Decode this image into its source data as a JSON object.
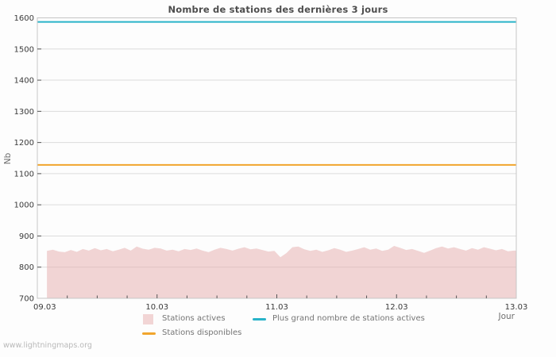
{
  "page": {
    "footer": "www.lightningmaps.org"
  },
  "chart_data": {
    "type": "area",
    "title": "Nombre de stations des dernières 3 jours",
    "xlabel": "Jour",
    "ylabel": "Nb",
    "x_domain": [
      9,
      13
    ],
    "x_major_ticks": [
      9,
      10,
      11,
      12,
      13
    ],
    "x_tick_labels": [
      "09.03",
      "10.03",
      "11.03",
      "12.03",
      "13.03"
    ],
    "x_minor_step": 0.25,
    "ylim": [
      700,
      1600
    ],
    "y_tick_step": 100,
    "grid": "horizontal-only",
    "legend_position": "bottom",
    "colors": {
      "grid": "#dcdcdc",
      "frame": "#c6c6c6",
      "tick": "#555555",
      "area_fill": "#e5abab",
      "area_opacity": 0.5,
      "area_legend_swatch": "#f2d5d5",
      "line_disponibles": "#f1a52d",
      "line_plus_grand": "#29b3c9"
    },
    "series": [
      {
        "name": "Stations actives",
        "type": "area",
        "x_start": 9.08,
        "x_step": 0.05,
        "values": [
          852,
          856,
          850,
          848,
          855,
          849,
          858,
          853,
          861,
          854,
          858,
          851,
          856,
          862,
          853,
          866,
          859,
          856,
          862,
          860,
          853,
          856,
          851,
          858,
          855,
          860,
          853,
          848,
          856,
          862,
          858,
          853,
          859,
          864,
          857,
          860,
          855,
          850,
          852,
          832,
          845,
          864,
          866,
          857,
          852,
          856,
          849,
          854,
          861,
          856,
          849,
          853,
          858,
          864,
          856,
          860,
          852,
          856,
          868,
          862,
          855,
          858,
          852,
          846,
          853,
          861,
          866,
          860,
          864,
          858,
          853,
          861,
          856,
          864,
          859,
          854,
          858,
          851,
          853
        ]
      },
      {
        "name": "Stations disponibles",
        "type": "hline",
        "value": 1128
      },
      {
        "name": "Plus grand nombre de stations actives",
        "type": "hline",
        "value": 1587
      }
    ]
  },
  "legend": {
    "items": [
      {
        "label": "Stations actives",
        "swatch": "area",
        "color": "#f2d5d5"
      },
      {
        "label": "Plus grand nombre de stations actives",
        "swatch": "line",
        "color": "#29b3c9"
      },
      {
        "label": "Stations disponibles",
        "swatch": "line",
        "color": "#f1a52d"
      }
    ]
  }
}
